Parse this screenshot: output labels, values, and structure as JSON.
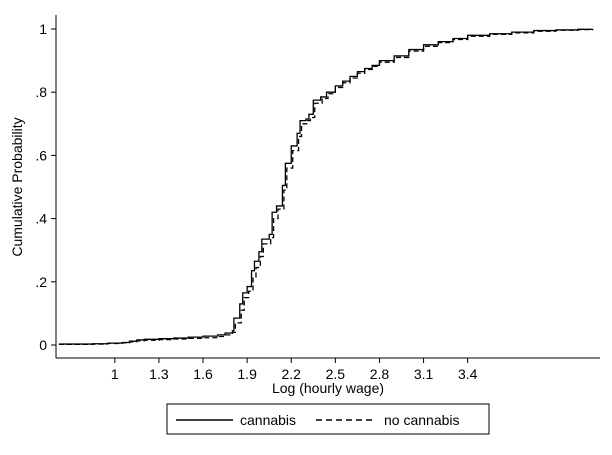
{
  "chart_data": {
    "type": "line",
    "title": "",
    "xlabel": "Log (hourly wage)",
    "ylabel": "Cumulative Probability",
    "xlim": [
      0.6,
      4.3
    ],
    "ylim": [
      0,
      1
    ],
    "x_ticks": [
      1,
      1.3,
      1.6,
      1.9,
      2.2,
      2.5,
      2.8,
      3.1,
      3.4
    ],
    "x_tick_labels": [
      "1",
      "1.3",
      "1.6",
      "1.9",
      "2.2",
      "2.5",
      "2.8",
      "3.1",
      "3.4"
    ],
    "y_ticks": [
      0,
      0.2,
      0.4,
      0.6,
      0.8,
      1
    ],
    "y_tick_labels": [
      "0",
      ".2",
      ".4",
      ".6",
      ".8",
      "1"
    ],
    "grid": false,
    "legend_position": "bottom",
    "series": [
      {
        "name": "cannabis",
        "style": "solid",
        "color": "#000000",
        "x": [
          0.62,
          0.85,
          0.95,
          1.05,
          1.1,
          1.15,
          1.2,
          1.3,
          1.4,
          1.5,
          1.6,
          1.7,
          1.75,
          1.8,
          1.81,
          1.85,
          1.87,
          1.9,
          1.93,
          1.95,
          1.98,
          2.0,
          2.05,
          2.07,
          2.1,
          2.14,
          2.16,
          2.2,
          2.24,
          2.26,
          2.3,
          2.32,
          2.35,
          2.4,
          2.44,
          2.5,
          2.55,
          2.6,
          2.65,
          2.7,
          2.75,
          2.8,
          2.9,
          3.0,
          3.1,
          3.2,
          3.3,
          3.4,
          3.55,
          3.7,
          3.85,
          4.0,
          4.15,
          4.25
        ],
        "y": [
          0.003,
          0.004,
          0.006,
          0.008,
          0.012,
          0.016,
          0.018,
          0.02,
          0.022,
          0.025,
          0.028,
          0.032,
          0.038,
          0.045,
          0.085,
          0.13,
          0.165,
          0.185,
          0.235,
          0.265,
          0.295,
          0.335,
          0.35,
          0.42,
          0.44,
          0.505,
          0.575,
          0.63,
          0.67,
          0.71,
          0.715,
          0.73,
          0.775,
          0.785,
          0.8,
          0.82,
          0.835,
          0.85,
          0.865,
          0.875,
          0.885,
          0.9,
          0.915,
          0.935,
          0.95,
          0.96,
          0.97,
          0.98,
          0.985,
          0.99,
          0.995,
          0.997,
          0.999,
          1.0
        ]
      },
      {
        "name": "no cannabis",
        "style": "dashed",
        "color": "#000000",
        "x": [
          0.62,
          0.85,
          0.95,
          1.05,
          1.1,
          1.15,
          1.2,
          1.3,
          1.4,
          1.5,
          1.6,
          1.7,
          1.75,
          1.8,
          1.82,
          1.86,
          1.88,
          1.91,
          1.94,
          1.96,
          1.99,
          2.01,
          2.06,
          2.08,
          2.11,
          2.15,
          2.17,
          2.21,
          2.25,
          2.27,
          2.31,
          2.33,
          2.36,
          2.41,
          2.45,
          2.5,
          2.55,
          2.6,
          2.65,
          2.7,
          2.75,
          2.8,
          2.9,
          3.0,
          3.1,
          3.2,
          3.3,
          3.4,
          3.55,
          3.7,
          3.85,
          4.0,
          4.15,
          4.25
        ],
        "y": [
          0.002,
          0.003,
          0.005,
          0.007,
          0.01,
          0.013,
          0.015,
          0.017,
          0.019,
          0.021,
          0.023,
          0.027,
          0.032,
          0.04,
          0.07,
          0.11,
          0.15,
          0.17,
          0.215,
          0.245,
          0.28,
          0.32,
          0.34,
          0.4,
          0.43,
          0.49,
          0.56,
          0.615,
          0.66,
          0.7,
          0.71,
          0.72,
          0.765,
          0.78,
          0.795,
          0.815,
          0.83,
          0.845,
          0.86,
          0.872,
          0.882,
          0.895,
          0.91,
          0.93,
          0.945,
          0.957,
          0.967,
          0.977,
          0.983,
          0.988,
          0.993,
          0.996,
          0.998,
          1.0
        ]
      }
    ]
  }
}
